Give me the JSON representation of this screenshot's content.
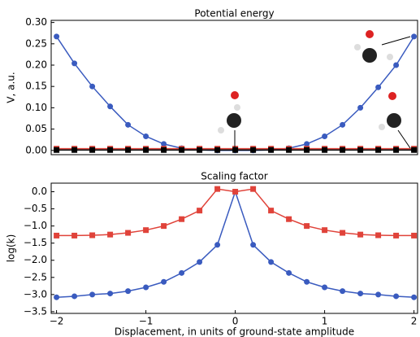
{
  "chart_data": [
    {
      "type": "line",
      "title": "Potential energy",
      "ylabel": "V, a.u.",
      "x": [
        -2,
        -1.8,
        -1.6,
        -1.4,
        -1.2,
        -1,
        -0.8,
        -0.6,
        -0.4,
        -0.2,
        0,
        0.2,
        0.4,
        0.6,
        0.8,
        1,
        1.2,
        1.4,
        1.6,
        1.8,
        2
      ],
      "series": [
        {
          "color": "#3a5bbf",
          "marker": "circle",
          "values": [
            0.267,
            0.204,
            0.15,
            0.103,
            0.06,
            0.033,
            0.015,
            0.005,
            0.001,
            0,
            0,
            0,
            0.001,
            0.005,
            0.015,
            0.033,
            0.06,
            0.1,
            0.148,
            0.2,
            0.267
          ]
        },
        {
          "color": "#e0433a",
          "marker": "square",
          "values": [
            0.004,
            0.004,
            0.004,
            0.004,
            0.004,
            0.004,
            0.004,
            0.004,
            0.004,
            0.004,
            0.004,
            0.004,
            0.004,
            0.004,
            0.004,
            0.004,
            0.004,
            0.004,
            0.004,
            0.004,
            0.004
          ]
        },
        {
          "color": "#000000",
          "marker": "square",
          "values": [
            0.001,
            0.001,
            0.001,
            0.001,
            0.001,
            0.001,
            0.001,
            0.001,
            0.001,
            0.001,
            0.001,
            0.001,
            0.001,
            0.001,
            0.001,
            0.001,
            0.001,
            0.001,
            0.001,
            0.001,
            0.001
          ]
        }
      ],
      "xlim": [
        -2.06,
        2.04
      ],
      "ylim": [
        -0.01,
        0.305
      ],
      "yticks": [
        {
          "value": 0,
          "label": "0.00"
        },
        {
          "value": 0.05,
          "label": "0.05"
        },
        {
          "value": 0.1,
          "label": "0.10"
        },
        {
          "value": 0.15,
          "label": "0.15"
        },
        {
          "value": 0.2,
          "label": "0.20"
        },
        {
          "value": 0.25,
          "label": "0.25"
        },
        {
          "value": 0.3,
          "label": "0.30"
        }
      ]
    },
    {
      "type": "line",
      "title": "Scaling factor",
      "ylabel": "log(k)",
      "xlabel": "Displacement, in units of ground-state amplitude",
      "x": [
        -2,
        -1.8,
        -1.6,
        -1.4,
        -1.2,
        -1,
        -0.8,
        -0.6,
        -0.4,
        -0.2,
        0,
        0.2,
        0.4,
        0.6,
        0.8,
        1,
        1.2,
        1.4,
        1.6,
        1.8,
        2
      ],
      "series": [
        {
          "color": "#3a5bbf",
          "marker": "circle",
          "values": [
            -3.08,
            -3.05,
            -3.0,
            -2.97,
            -2.9,
            -2.79,
            -2.63,
            -2.37,
            -2.05,
            -1.55,
            0,
            -1.55,
            -2.05,
            -2.37,
            -2.63,
            -2.79,
            -2.9,
            -2.97,
            -3.0,
            -3.05,
            -3.08
          ]
        },
        {
          "color": "#e0433a",
          "marker": "square",
          "values": [
            -1.28,
            -1.28,
            -1.27,
            -1.25,
            -1.2,
            -1.12,
            -1.0,
            -0.8,
            -0.55,
            0.08,
            0,
            0.08,
            -0.55,
            -0.8,
            -1.0,
            -1.12,
            -1.2,
            -1.25,
            -1.27,
            -1.28,
            -1.28
          ]
        }
      ],
      "xlim": [
        -2.06,
        2.04
      ],
      "ylim": [
        -3.55,
        0.25
      ],
      "xticks": [
        {
          "value": -2,
          "label": "−2"
        },
        {
          "value": -1,
          "label": "−1"
        },
        0,
        1,
        2
      ],
      "yticks": [
        {
          "value": -3.5,
          "label": "−3.5"
        },
        {
          "value": -3,
          "label": "−3.0"
        },
        {
          "value": -2.5,
          "label": "−2.5"
        },
        {
          "value": -2,
          "label": "−2.0"
        },
        {
          "value": -1.5,
          "label": "−1.5"
        },
        {
          "value": -1,
          "label": "−1.0"
        },
        {
          "value": -0.5,
          "label": "−0.5"
        },
        {
          "value": 0,
          "label": "0.0"
        }
      ]
    }
  ]
}
